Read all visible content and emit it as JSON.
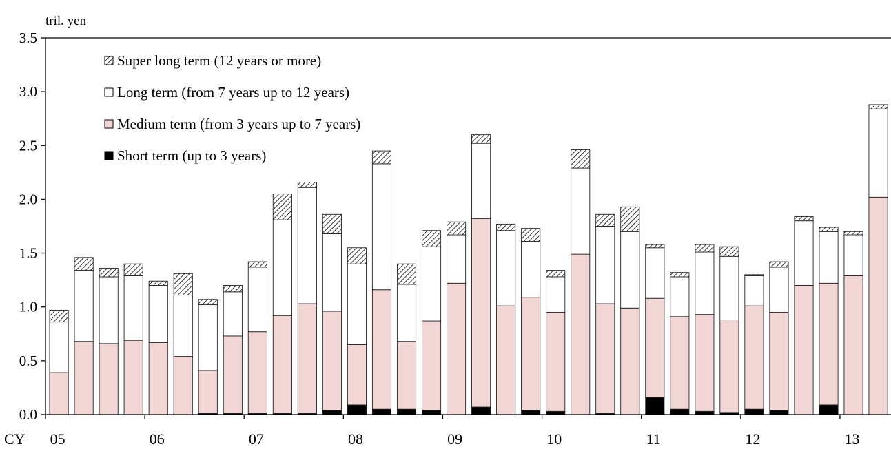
{
  "chart_data": {
    "type": "bar",
    "stacked": true,
    "unit_label": "tril. yen",
    "title": "",
    "xlabel_prefix": "CY",
    "ylim": [
      0,
      3.5
    ],
    "yticks": [
      "0.0",
      "0.5",
      "1.0",
      "1.5",
      "2.0",
      "2.5",
      "3.0",
      "3.5"
    ],
    "year_labels": [
      "05",
      "06",
      "07",
      "08",
      "09",
      "10",
      "11",
      "12",
      "13"
    ],
    "bars_per_year": 4,
    "grid": false,
    "legend_position": "top-left",
    "colors": {
      "short": "#000000",
      "medium": "#f2d6d6",
      "long": "#ffffff",
      "super": "hatched"
    },
    "series": [
      {
        "name": "Short term (up to 3 years)",
        "key": "short",
        "values": [
          0.0,
          0.0,
          0.0,
          0.0,
          0.0,
          0.0,
          0.01,
          0.01,
          0.01,
          0.01,
          0.01,
          0.04,
          0.09,
          0.05,
          0.05,
          0.04,
          0.0,
          0.07,
          0.0,
          0.04,
          0.03,
          0.0,
          0.01,
          0.0,
          0.16,
          0.05,
          0.03,
          0.02,
          0.05,
          0.04,
          0.0,
          0.09,
          0.0,
          0.0
        ]
      },
      {
        "name": "Medium term (from  3 years up to 7 years)",
        "key": "medium",
        "values": [
          0.39,
          0.68,
          0.66,
          0.69,
          0.67,
          0.54,
          0.4,
          0.72,
          0.76,
          0.91,
          1.02,
          0.92,
          0.56,
          1.11,
          0.63,
          0.83,
          1.22,
          1.75,
          1.01,
          1.05,
          0.92,
          1.49,
          1.02,
          0.99,
          0.92,
          0.86,
          0.9,
          0.86,
          0.96,
          0.91,
          1.2,
          1.13,
          1.29,
          2.02
        ]
      },
      {
        "name": "Long term (from 7 years up to 12 years)",
        "key": "long",
        "values": [
          0.47,
          0.66,
          0.62,
          0.6,
          0.53,
          0.57,
          0.61,
          0.41,
          0.6,
          0.89,
          1.08,
          0.72,
          0.75,
          1.17,
          0.53,
          0.69,
          0.45,
          0.7,
          0.7,
          0.52,
          0.33,
          0.8,
          0.72,
          0.71,
          0.47,
          0.37,
          0.58,
          0.59,
          0.28,
          0.42,
          0.6,
          0.48,
          0.38,
          0.82
        ]
      },
      {
        "name": "Super long term (12 years or more)",
        "key": "super",
        "values": [
          0.11,
          0.12,
          0.08,
          0.11,
          0.04,
          0.2,
          0.05,
          0.06,
          0.05,
          0.24,
          0.05,
          0.18,
          0.15,
          0.12,
          0.19,
          0.15,
          0.12,
          0.08,
          0.06,
          0.12,
          0.06,
          0.17,
          0.11,
          0.23,
          0.03,
          0.04,
          0.07,
          0.09,
          0.01,
          0.05,
          0.04,
          0.04,
          0.03,
          0.04
        ]
      }
    ]
  }
}
